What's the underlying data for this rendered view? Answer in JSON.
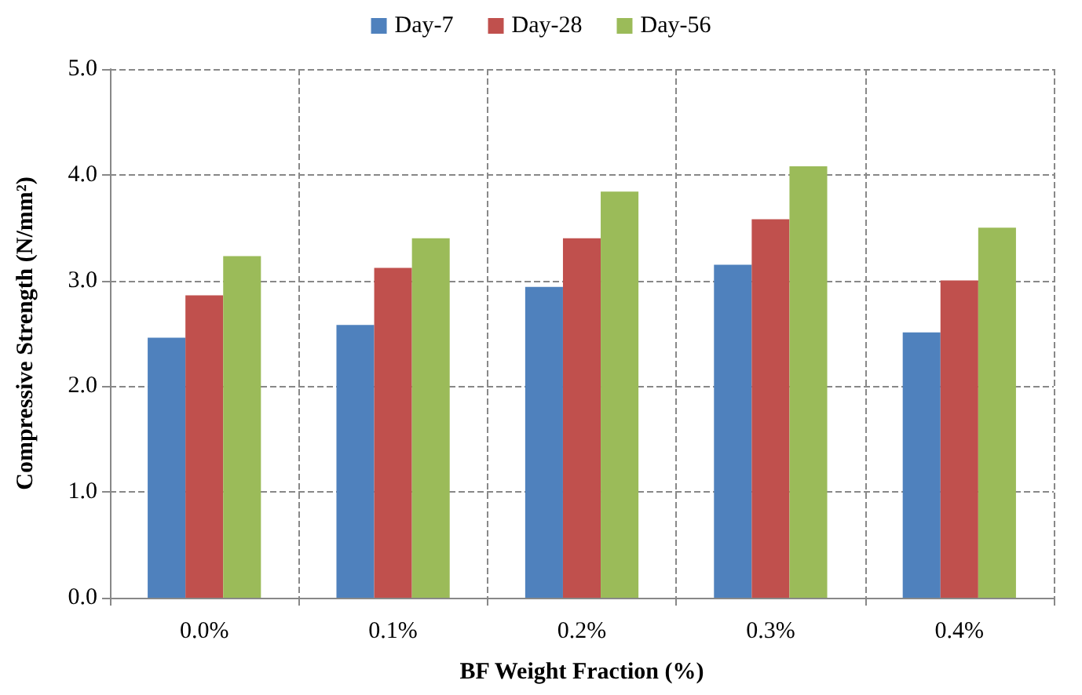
{
  "chart_data": {
    "type": "bar",
    "xlabel": "BF Weight Fraction (%)",
    "ylabel": "Compressive Strength (N/mm²)",
    "categories": [
      "0.0%",
      "0.1%",
      "0.2%",
      "0.3%",
      "0.4%"
    ],
    "series": [
      {
        "name": "Day-7",
        "color": "#4f81bd",
        "values": [
          2.46,
          2.58,
          2.94,
          3.15,
          2.51
        ]
      },
      {
        "name": "Day-28",
        "color": "#c0504d",
        "values": [
          2.86,
          3.12,
          3.4,
          3.58,
          3.0
        ]
      },
      {
        "name": "Day-56",
        "color": "#9bbb59",
        "values": [
          3.23,
          3.4,
          3.84,
          4.08,
          3.5
        ]
      }
    ],
    "ylim": [
      0,
      5
    ],
    "yticks": [
      {
        "value": 0,
        "label": "0.0"
      },
      {
        "value": 1,
        "label": "1.0"
      },
      {
        "value": 2,
        "label": "2.0"
      },
      {
        "value": 3,
        "label": "3.0"
      },
      {
        "value": 4,
        "label": "4.0"
      },
      {
        "value": 5,
        "label": "5.0"
      }
    ],
    "grid": true,
    "legend": "top"
  }
}
